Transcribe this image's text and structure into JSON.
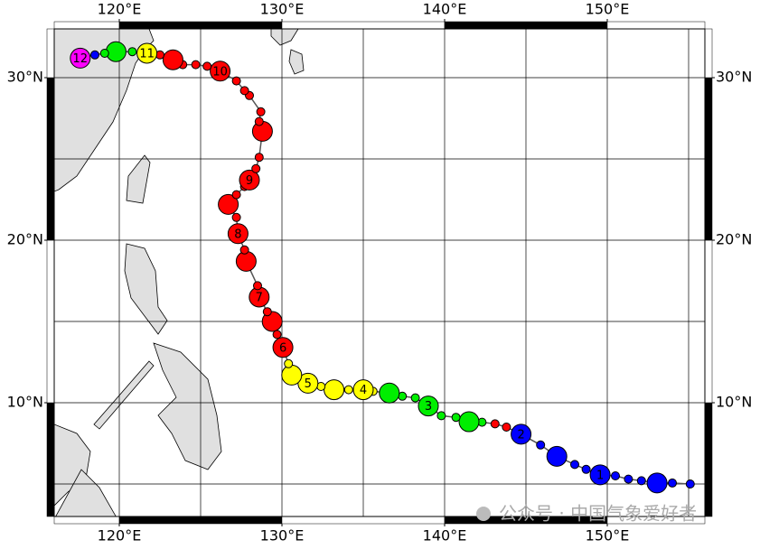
{
  "map": {
    "xlim": [
      116,
      156
    ],
    "ylim": [
      3,
      33
    ],
    "xticks": [
      {
        "value": 120,
        "label": "120°E"
      },
      {
        "value": 130,
        "label": "130°E"
      },
      {
        "value": 140,
        "label": "140°E"
      },
      {
        "value": 150,
        "label": "150°E"
      }
    ],
    "yticks": [
      {
        "value": 10,
        "label": "10°N"
      },
      {
        "value": 20,
        "label": "20°N"
      },
      {
        "value": 30,
        "label": "30°N"
      }
    ],
    "xgrid": [
      120,
      125,
      130,
      135,
      140,
      145,
      150,
      155
    ],
    "ygrid": [
      5,
      10,
      15,
      20,
      25,
      30
    ],
    "track_color": "#555555",
    "track": [
      {
        "lon": 155.1,
        "lat": 5.0,
        "color": "#0000ff",
        "size": "small"
      },
      {
        "lon": 154.0,
        "lat": 5.06,
        "color": "#0000ff",
        "size": "small"
      },
      {
        "lon": 153.06,
        "lat": 5.06,
        "color": "#0000ff",
        "size": "large"
      },
      {
        "lon": 152.1,
        "lat": 5.2,
        "color": "#0000ff",
        "size": "small"
      },
      {
        "lon": 151.3,
        "lat": 5.3,
        "color": "#0000ff",
        "size": "small"
      },
      {
        "lon": 150.5,
        "lat": 5.5,
        "color": "#0000ff",
        "size": "small"
      },
      {
        "lon": 149.56,
        "lat": 5.56,
        "color": "#0000ff",
        "size": "large",
        "label": "1"
      },
      {
        "lon": 148.7,
        "lat": 5.9,
        "color": "#0000ff",
        "size": "small"
      },
      {
        "lon": 148.0,
        "lat": 6.2,
        "color": "#0000ff",
        "size": "small"
      },
      {
        "lon": 146.9,
        "lat": 6.7,
        "color": "#0000ff",
        "size": "large"
      },
      {
        "lon": 145.9,
        "lat": 7.4,
        "color": "#0000ff",
        "size": "small"
      },
      {
        "lon": 144.7,
        "lat": 8.06,
        "color": "#0000ff",
        "size": "large",
        "label": "2"
      },
      {
        "lon": 143.8,
        "lat": 8.5,
        "color": "#ff0000",
        "size": "small"
      },
      {
        "lon": 143.1,
        "lat": 8.7,
        "color": "#ff0000",
        "size": "small"
      },
      {
        "lon": 142.3,
        "lat": 8.8,
        "color": "#00ee00",
        "size": "small"
      },
      {
        "lon": 141.5,
        "lat": 8.83,
        "color": "#00ee00",
        "size": "large"
      },
      {
        "lon": 140.7,
        "lat": 9.1,
        "color": "#00ee00",
        "size": "small"
      },
      {
        "lon": 139.8,
        "lat": 9.2,
        "color": "#00ee00",
        "size": "small"
      },
      {
        "lon": 139.0,
        "lat": 9.8,
        "color": "#00ee00",
        "size": "large",
        "label": "3"
      },
      {
        "lon": 138.2,
        "lat": 10.3,
        "color": "#00ee00",
        "size": "small"
      },
      {
        "lon": 137.4,
        "lat": 10.4,
        "color": "#00ee00",
        "size": "small"
      },
      {
        "lon": 136.6,
        "lat": 10.6,
        "color": "#00ee00",
        "size": "large"
      },
      {
        "lon": 135.6,
        "lat": 10.7,
        "color": "#ffff00",
        "size": "small"
      },
      {
        "lon": 135.0,
        "lat": 10.8,
        "color": "#ffff00",
        "size": "large",
        "label": "4"
      },
      {
        "lon": 134.1,
        "lat": 10.8,
        "color": "#ffff00",
        "size": "small"
      },
      {
        "lon": 133.2,
        "lat": 10.8,
        "color": "#ffff00",
        "size": "large"
      },
      {
        "lon": 132.4,
        "lat": 11.0,
        "color": "#ffff00",
        "size": "small"
      },
      {
        "lon": 131.6,
        "lat": 11.2,
        "color": "#ffff00",
        "size": "large",
        "label": "5"
      },
      {
        "lon": 130.6,
        "lat": 11.7,
        "color": "#ffff00",
        "size": "large"
      },
      {
        "lon": 130.4,
        "lat": 12.4,
        "color": "#ffff00",
        "size": "small"
      },
      {
        "lon": 130.06,
        "lat": 13.4,
        "color": "#ff0000",
        "size": "large",
        "label": "6"
      },
      {
        "lon": 129.7,
        "lat": 14.2,
        "color": "#ff0000",
        "size": "small"
      },
      {
        "lon": 129.4,
        "lat": 15.0,
        "color": "#ff0000",
        "size": "large"
      },
      {
        "lon": 129.1,
        "lat": 15.6,
        "color": "#ff0000",
        "size": "small"
      },
      {
        "lon": 128.6,
        "lat": 16.5,
        "color": "#ff0000",
        "size": "large",
        "label": "7"
      },
      {
        "lon": 128.5,
        "lat": 17.2,
        "color": "#ff0000",
        "size": "small"
      },
      {
        "lon": 127.8,
        "lat": 18.7,
        "color": "#ff0000",
        "size": "large"
      },
      {
        "lon": 127.7,
        "lat": 19.4,
        "color": "#ff0000",
        "size": "small"
      },
      {
        "lon": 127.3,
        "lat": 20.4,
        "color": "#ff0000",
        "size": "large",
        "label": "8"
      },
      {
        "lon": 127.2,
        "lat": 21.4,
        "color": "#ff0000",
        "size": "small"
      },
      {
        "lon": 126.7,
        "lat": 22.2,
        "color": "#ff0000",
        "size": "large"
      },
      {
        "lon": 127.2,
        "lat": 22.8,
        "color": "#ff0000",
        "size": "small"
      },
      {
        "lon": 127.7,
        "lat": 23.3,
        "color": "#ff0000",
        "size": "small"
      },
      {
        "lon": 128.0,
        "lat": 23.7,
        "color": "#ff0000",
        "size": "large",
        "label": "9"
      },
      {
        "lon": 128.4,
        "lat": 24.4,
        "color": "#ff0000",
        "size": "small"
      },
      {
        "lon": 128.6,
        "lat": 25.1,
        "color": "#ff0000",
        "size": "small"
      },
      {
        "lon": 128.8,
        "lat": 26.7,
        "color": "#ff0000",
        "size": "large"
      },
      {
        "lon": 128.6,
        "lat": 27.3,
        "color": "#ff0000",
        "size": "small"
      },
      {
        "lon": 128.7,
        "lat": 27.9,
        "color": "#ff0000",
        "size": "small"
      },
      {
        "lon": 128.0,
        "lat": 28.9,
        "color": "#ff0000",
        "size": "small"
      },
      {
        "lon": 127.7,
        "lat": 29.2,
        "color": "#ff0000",
        "size": "small"
      },
      {
        "lon": 127.2,
        "lat": 29.8,
        "color": "#ff0000",
        "size": "small"
      },
      {
        "lon": 126.2,
        "lat": 30.4,
        "color": "#ff0000",
        "size": "large",
        "label": "10"
      },
      {
        "lon": 125.4,
        "lat": 30.7,
        "color": "#ff0000",
        "size": "small"
      },
      {
        "lon": 124.7,
        "lat": 30.8,
        "color": "#ff0000",
        "size": "small"
      },
      {
        "lon": 123.9,
        "lat": 30.8,
        "color": "#ff0000",
        "size": "small"
      },
      {
        "lon": 123.3,
        "lat": 31.1,
        "color": "#ff0000",
        "size": "large"
      },
      {
        "lon": 122.5,
        "lat": 31.4,
        "color": "#ff0000",
        "size": "small"
      },
      {
        "lon": 121.7,
        "lat": 31.5,
        "color": "#ffff00",
        "size": "large",
        "label": "11"
      },
      {
        "lon": 120.8,
        "lat": 31.6,
        "color": "#00ee00",
        "size": "small"
      },
      {
        "lon": 119.8,
        "lat": 31.6,
        "color": "#00ee00",
        "size": "large"
      },
      {
        "lon": 119.1,
        "lat": 31.5,
        "color": "#00ee00",
        "size": "small"
      },
      {
        "lon": 118.5,
        "lat": 31.4,
        "color": "#0000ff",
        "size": "small"
      },
      {
        "lon": 117.6,
        "lat": 31.2,
        "color": "#ff00ff",
        "size": "large",
        "label": "12"
      }
    ],
    "watermark": "公众号 · 中国气象爱好者"
  }
}
